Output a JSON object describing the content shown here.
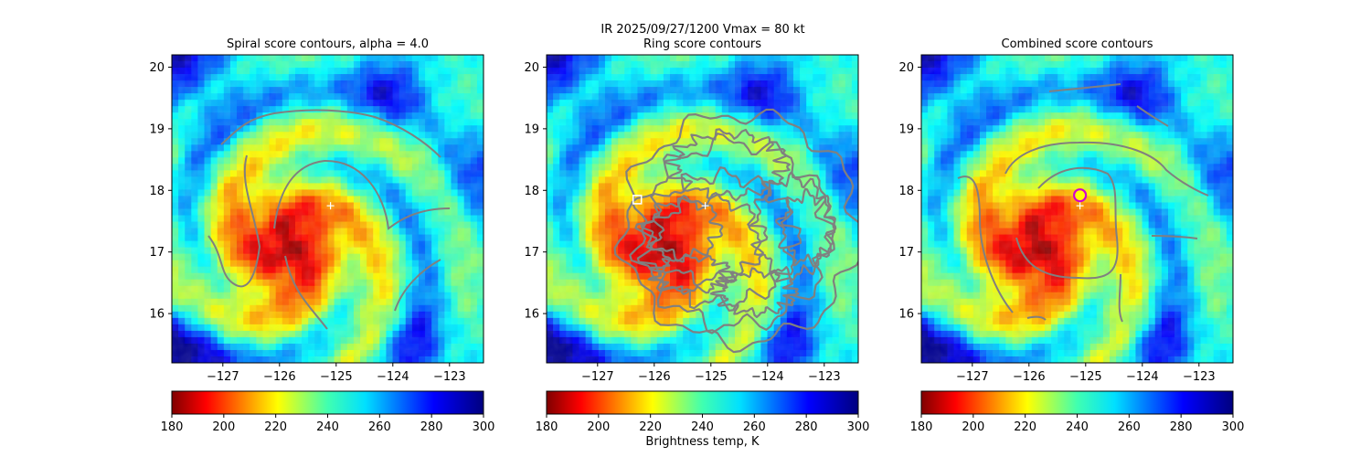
{
  "chart_data": {
    "type": "heatmap",
    "suptitle": "IR  2025/09/27/1200    Vmax = 80 kt",
    "colormap": "jet_r",
    "colorbar": {
      "vmin": 180,
      "vmax": 300,
      "ticks": [
        "180",
        "200",
        "220",
        "240",
        "260",
        "280",
        "300"
      ],
      "label": "Brightness temp, K"
    },
    "xlim": [
      -127.9,
      -122.4
    ],
    "ylim": [
      15.2,
      20.2
    ],
    "xticks": [
      -127,
      -126,
      -125,
      -124,
      -123
    ],
    "yticks": [
      16,
      17,
      18,
      19,
      20
    ],
    "xtick_labels": [
      "−127",
      "−126",
      "−125",
      "−124",
      "−123"
    ],
    "ytick_labels": [
      "16",
      "17",
      "18",
      "19",
      "20"
    ],
    "first_guess_center": {
      "lon": -125.1,
      "lat": 17.75
    },
    "panels": [
      {
        "title": "Spiral score contours, alpha =  4.0",
        "marker": "none",
        "contour_style": "spiral"
      },
      {
        "title": "Ring score contours",
        "marker": "square",
        "marker_lon": -126.3,
        "marker_lat": 17.85,
        "contour_style": "ring"
      },
      {
        "title": "Combined score contours",
        "marker": "circle",
        "marker_lon": -125.1,
        "marker_lat": 17.92,
        "contour_style": "combined"
      }
    ]
  }
}
